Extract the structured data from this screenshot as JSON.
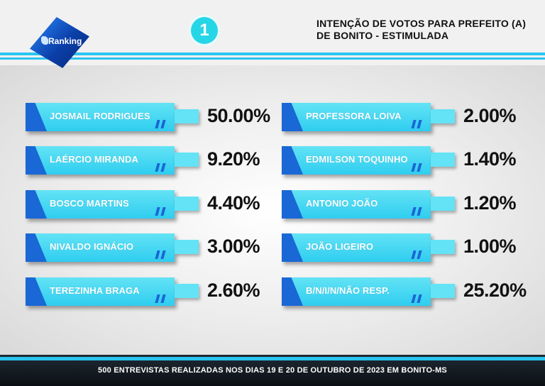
{
  "header": {
    "brand": "Ranking",
    "badge_number": "1",
    "title_line1": "INTENÇÃO DE VOTOS PARA PREFEITO (A)",
    "title_line2": "DE BONITO - ESTIMULADA"
  },
  "candidates_left": [
    {
      "name": "JOSMAIL RODRIGUES",
      "percent": "50.00%"
    },
    {
      "name": "LAÉRCIO MIRANDA",
      "percent": "9.20%"
    },
    {
      "name": "BOSCO MARTINS",
      "percent": "4.40%"
    },
    {
      "name": "NIVALDO IGNÁCIO",
      "percent": "3.00%"
    },
    {
      "name": "TEREZINHA BRAGA",
      "percent": "2.60%"
    }
  ],
  "candidates_right": [
    {
      "name": "PROFESSORA LOIVA",
      "percent": "2.00%"
    },
    {
      "name": "EDMILSON TOQUINHO",
      "percent": "1.40%"
    },
    {
      "name": "ANTONIO JOÃO",
      "percent": "1.20%"
    },
    {
      "name": "JOÃO LIGEIRO",
      "percent": "1.00%"
    },
    {
      "name": "B/N/I/N/NÃO RESP.",
      "percent": "25.20%"
    }
  ],
  "footer": {
    "text": "500 ENTREVISTAS REALIZADAS NOS DIAS 19 E 20 DE OUTUBRO DE 2023 EM BONITO-MS"
  },
  "colors": {
    "accent": "#29c4f0",
    "card": "#2fcdf0",
    "card_edge": "#1a67d6",
    "logo": "#0b3fa8",
    "footer": "#0b0f14"
  }
}
